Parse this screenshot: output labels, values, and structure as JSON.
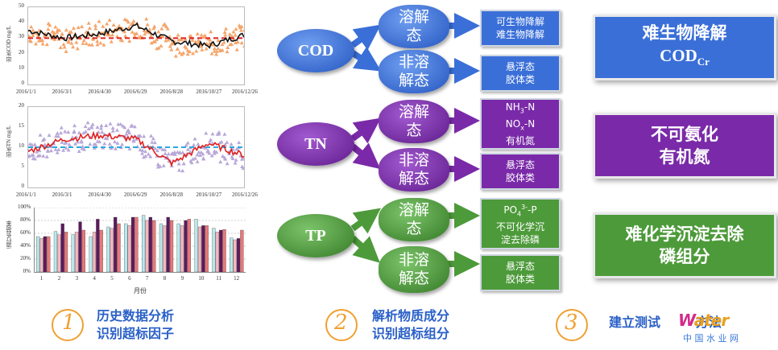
{
  "charts": {
    "cod": {
      "ylabel": "出水COD mg/L",
      "yticks": [
        "50",
        "40",
        "30",
        "20",
        "10",
        "0"
      ],
      "xticks": [
        "2016/1/1",
        "2016/3/1",
        "2016/4/30",
        "2016/6/29",
        "2016/8/28",
        "2016/10/27",
        "2016/12/26"
      ],
      "standard": 30
    },
    "tn": {
      "ylabel": "出水TN mg/L",
      "yticks": [
        "20",
        "15",
        "10",
        "5",
        "0"
      ],
      "xticks": [
        "2016/1/1",
        "2016/3/1",
        "2016/4/30",
        "2016/6/29",
        "2016/8/28",
        "2016/10/27",
        "2016/12/26"
      ],
      "standard": 10
    },
    "rate": {
      "ylabel": "运行负荷率",
      "yticks": [
        "100%",
        "80%",
        "60%",
        "40%",
        "20%",
        "0%"
      ],
      "xticks": [
        "1",
        "2",
        "3",
        "4",
        "5",
        "6",
        "7",
        "8",
        "9",
        "10",
        "11",
        "12"
      ],
      "xlabel": "月份"
    }
  },
  "chart_data": [
    {
      "type": "line",
      "ylabel": "出水COD mg/L",
      "ylim": [
        0,
        50
      ],
      "x": [
        "2016/1/1",
        "2016/3/1",
        "2016/4/30",
        "2016/6/29",
        "2016/8/28",
        "2016/10/27",
        "2016/12/26"
      ],
      "series": [
        {
          "values": [
            35,
            30,
            33,
            38,
            28,
            25,
            32
          ]
        },
        {
          "values": [
            30,
            30,
            30,
            30,
            30,
            30,
            30
          ]
        }
      ]
    },
    {
      "type": "line",
      "ylabel": "出水TN mg/L",
      "ylim": [
        0,
        20
      ],
      "x": [
        "2016/1/1",
        "2016/3/1",
        "2016/4/30",
        "2016/6/29",
        "2016/8/28",
        "2016/10/27",
        "2016/12/26"
      ],
      "series": [
        {
          "values": [
            9,
            12,
            13,
            12,
            6,
            11,
            8
          ]
        },
        {
          "values": [
            10,
            10,
            10,
            10,
            10,
            10,
            10
          ]
        }
      ]
    },
    {
      "type": "bar",
      "ylabel": "运行负荷率",
      "xlabel": "月份",
      "ylim": [
        0,
        1
      ],
      "categories": [
        "1",
        "2",
        "3",
        "4",
        "5",
        "6",
        "7",
        "8",
        "9",
        "10",
        "11",
        "12"
      ],
      "series": [
        {
          "values": [
            0.55,
            0.63,
            0.58,
            0.55,
            0.7,
            0.75,
            0.88,
            0.75,
            0.75,
            0.82,
            0.68,
            0.53
          ]
        },
        {
          "values": [
            0.52,
            0.58,
            0.62,
            0.62,
            0.68,
            0.72,
            0.8,
            0.72,
            0.72,
            0.7,
            0.62,
            0.5
          ]
        },
        {
          "values": [
            0.55,
            0.75,
            0.78,
            0.82,
            0.85,
            0.85,
            0.85,
            0.85,
            0.8,
            0.72,
            0.65,
            0.52
          ]
        },
        {
          "values": [
            0.55,
            0.62,
            0.65,
            0.65,
            0.75,
            0.85,
            0.8,
            0.8,
            0.82,
            0.72,
            0.66,
            0.65
          ]
        }
      ],
      "colors": [
        "#b8e8ec",
        "#f4b8c0",
        "#5c1a5c",
        "#e87878"
      ]
    }
  ],
  "diagram": {
    "cod": {
      "label": "COD",
      "dissolved": "溶解\n态",
      "undissolved": "非溶\n解态",
      "box1": [
        "可生物降解",
        "难生物降解"
      ],
      "box2": [
        "悬浮态",
        "胶体类"
      ]
    },
    "tn": {
      "label": "TN",
      "dissolved": "溶解\n态",
      "undissolved": "非溶\n解态",
      "box1": [
        "NH3-N",
        "NOx-N",
        "有机氮"
      ],
      "box2": [
        "悬浮态",
        "胶体类"
      ]
    },
    "tp": {
      "label": "TP",
      "dissolved": "溶解\n态",
      "undissolved": "非溶\n解态",
      "box1": [
        "PO43--P",
        "不可化学沉",
        "淀去除磷"
      ],
      "box2": [
        "悬浮态",
        "胶体类"
      ]
    }
  },
  "results": {
    "cod": {
      "line1": "难生物降解",
      "line2": "CODCr"
    },
    "tn": {
      "line1": "不可氨化",
      "line2": "有机氮"
    },
    "tp": {
      "line1": "难化学沉淀去除",
      "line2": "磷组分"
    }
  },
  "steps": [
    {
      "num": "①",
      "line1": "历史数据分析",
      "line2": "识别超标因子"
    },
    {
      "num": "②",
      "line1": "解析物质成分",
      "line2": "识别超标组分"
    },
    {
      "num": "③",
      "line1": "建立测试",
      "line2": "方法"
    }
  ],
  "watermark": "中 国 水 业 网",
  "colors": {
    "cod": "#3a6fd8",
    "tn": "#7a2aa8",
    "tp": "#4d9a3a",
    "step": "#f0a030",
    "stepText": "#2a60c8"
  }
}
